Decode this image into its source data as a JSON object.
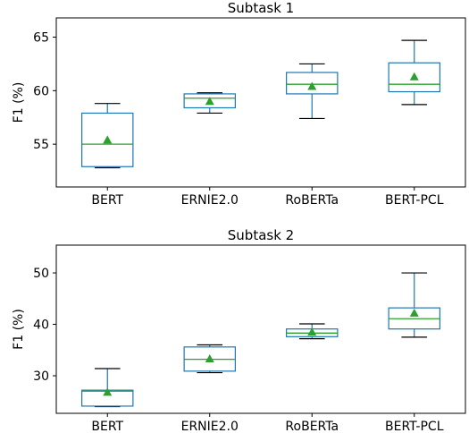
{
  "colors": {
    "box": "#1f77b4",
    "median": "#2ca02c",
    "mean_marker": "#2ca02c",
    "whisker_cap": "#000000",
    "axes": "#000000"
  },
  "chart_data": [
    {
      "type": "box",
      "title": "Subtask 1",
      "xlabel": "",
      "ylabel": "F1 (%)",
      "categories": [
        "BERT",
        "ERNIE2.0",
        "RoBERTa",
        "BERT-PCL"
      ],
      "ylim": [
        51.0,
        66.8
      ],
      "yticks": [
        55,
        60,
        65
      ],
      "grid": false,
      "boxes": [
        {
          "whislo": 52.8,
          "q1": 52.9,
          "med": 55.0,
          "q3": 57.9,
          "whishi": 58.8,
          "mean": 55.4
        },
        {
          "whislo": 57.9,
          "q1": 58.4,
          "med": 59.3,
          "q3": 59.7,
          "whishi": 59.8,
          "mean": 59.0
        },
        {
          "whislo": 57.4,
          "q1": 59.7,
          "med": 60.6,
          "q3": 61.7,
          "whishi": 62.5,
          "mean": 60.4
        },
        {
          "whislo": 58.7,
          "q1": 59.9,
          "med": 60.6,
          "q3": 62.6,
          "whishi": 64.7,
          "mean": 61.3
        }
      ]
    },
    {
      "type": "box",
      "title": "Subtask 2",
      "xlabel": "",
      "ylabel": "F1 (%)",
      "categories": [
        "BERT",
        "ERNIE2.0",
        "RoBERTa",
        "BERT-PCL"
      ],
      "ylim": [
        22.7,
        55.4
      ],
      "yticks": [
        30,
        40,
        50
      ],
      "grid": false,
      "boxes": [
        {
          "whislo": 24.0,
          "q1": 24.1,
          "med": 27.0,
          "q3": 27.2,
          "whishi": 31.4,
          "mean": 26.8
        },
        {
          "whislo": 30.6,
          "q1": 30.9,
          "med": 33.2,
          "q3": 35.6,
          "whishi": 36.0,
          "mean": 33.3
        },
        {
          "whislo": 37.2,
          "q1": 37.6,
          "med": 38.3,
          "q3": 39.1,
          "whishi": 40.1,
          "mean": 38.5
        },
        {
          "whislo": 37.5,
          "q1": 39.1,
          "med": 41.1,
          "q3": 43.2,
          "whishi": 50.0,
          "mean": 42.2
        }
      ]
    }
  ]
}
